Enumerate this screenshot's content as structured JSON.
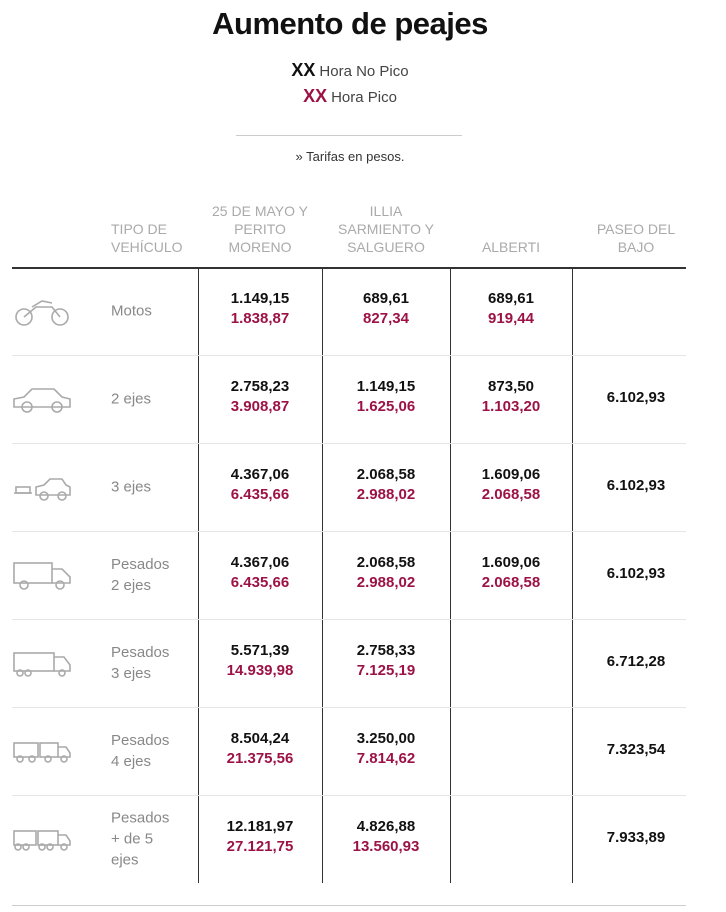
{
  "header": {
    "title": "Aumento de peajes",
    "legend": [
      {
        "marker": "XX",
        "label": "Hora No Pico"
      },
      {
        "marker": "XX",
        "label": "Hora Pico"
      }
    ],
    "note": "» Tarifas en pesos."
  },
  "table": {
    "columns": [
      "TIPO DE VEHÍCULO",
      "25 DE MAYO Y PERITO MORENO",
      "ILLIA SARMIENTO Y SALGUERO",
      "ALBERTI",
      "PASEO DEL BAJO"
    ],
    "rows": [
      {
        "type": "Motos",
        "tolls": [
          {
            "off_peak": "1.149,15",
            "peak": "1.838,87"
          },
          {
            "off_peak": "689,61",
            "peak": "827,34"
          },
          {
            "off_peak": "689,61",
            "peak": "919,44"
          },
          null
        ]
      },
      {
        "type": "2 ejes",
        "tolls": [
          {
            "off_peak": "2.758,23",
            "peak": "3.908,87"
          },
          {
            "off_peak": "1.149,15",
            "peak": "1.625,06"
          },
          {
            "off_peak": "873,50",
            "peak": "1.103,20"
          },
          {
            "off_peak": "6.102,93"
          }
        ]
      },
      {
        "type": "3 ejes",
        "tolls": [
          {
            "off_peak": "4.367,06",
            "peak": "6.435,66"
          },
          {
            "off_peak": "2.068,58",
            "peak": "2.988,02"
          },
          {
            "off_peak": "1.609,06",
            "peak": "2.068,58"
          },
          {
            "off_peak": "6.102,93"
          }
        ]
      },
      {
        "type": "Pesados 2 ejes",
        "tolls": [
          {
            "off_peak": "4.367,06",
            "peak": "6.435,66"
          },
          {
            "off_peak": "2.068,58",
            "peak": "2.988,02"
          },
          {
            "off_peak": "1.609,06",
            "peak": "2.068,58"
          },
          {
            "off_peak": "6.102,93"
          }
        ]
      },
      {
        "type": "Pesados 3 ejes",
        "tolls": [
          {
            "off_peak": "5.571,39",
            "peak": "14.939,98"
          },
          {
            "off_peak": "2.758,33",
            "peak": "7.125,19"
          },
          null,
          {
            "off_peak": "6.712,28"
          }
        ]
      },
      {
        "type": "Pesados 4 ejes",
        "tolls": [
          {
            "off_peak": "8.504,24",
            "peak": "21.375,56"
          },
          {
            "off_peak": "3.250,00",
            "peak": "7.814,62"
          },
          null,
          {
            "off_peak": "7.323,54"
          }
        ]
      },
      {
        "type": "Pesados + de 5 ejes",
        "tolls": [
          {
            "off_peak": "12.181,97",
            "peak": "27.121,75"
          },
          {
            "off_peak": "4.826,88",
            "peak": "13.560,93"
          },
          null,
          {
            "off_peak": "7.933,89"
          }
        ]
      }
    ]
  }
}
